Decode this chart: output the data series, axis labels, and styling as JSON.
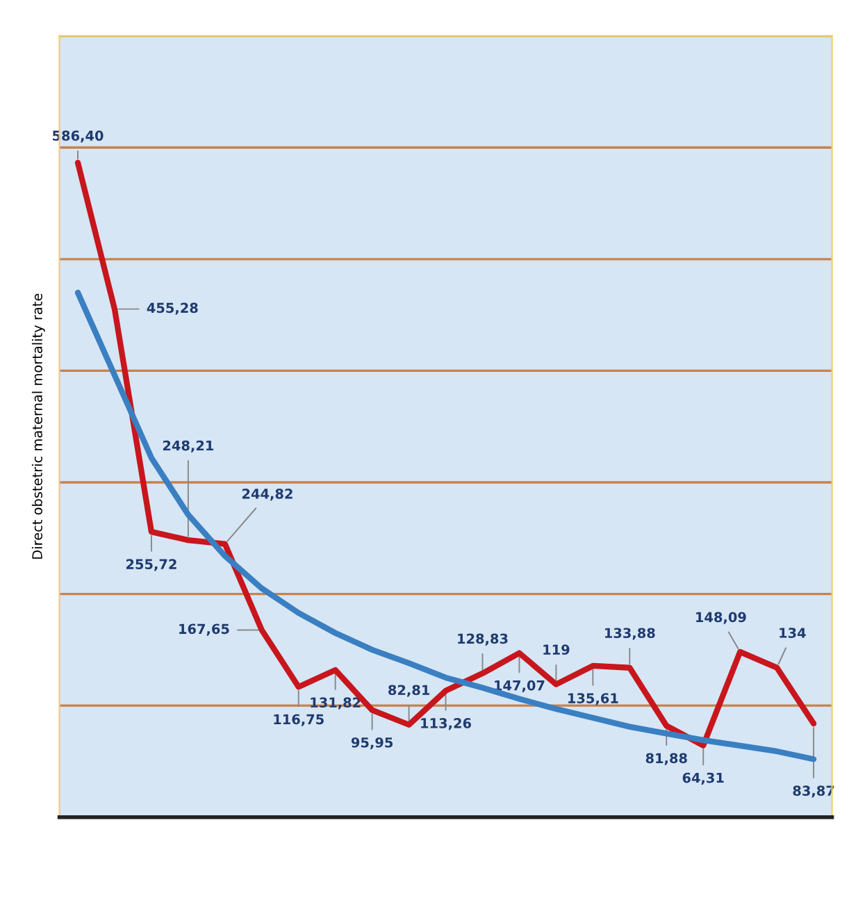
{
  "chart_data": {
    "type": "line",
    "ylabel": "Direct obstetric maternal mortality rate",
    "categories": [
      null,
      null,
      null,
      null,
      null,
      null,
      null,
      null,
      null,
      null,
      null,
      null,
      null,
      null,
      null,
      null,
      null,
      null,
      null,
      null,
      null
    ],
    "series": [
      {
        "color": "#c8161d",
        "values": [
          586.4,
          455.28,
          255.72,
          248.21,
          244.82,
          167.65,
          116.75,
          131.82,
          95.95,
          82.81,
          113.26,
          128.83,
          147.07,
          119,
          135.61,
          133.88,
          81.88,
          64.31,
          148.09,
          134,
          83.87
        ],
        "value_labels": [
          "586,40",
          "455,28",
          "255,72",
          "248,21",
          "244,82",
          "167,65",
          "116,75",
          "131,82",
          "95,95",
          "82,81",
          "113,26",
          "128,83",
          "147,07",
          "119",
          "135,61",
          "133,88",
          "81,88",
          "64,31",
          "148,09",
          "134",
          "83,87"
        ]
      },
      {
        "color": "#3a7fc1",
        "values": [
          470,
          396,
          322,
          271,
          234,
          205,
          183,
          165,
          150,
          138,
          125,
          116,
          106,
          97,
          89,
          81,
          75,
          69,
          64,
          59,
          52
        ]
      }
    ],
    "ylim": [
      0,
      700
    ],
    "yticks": [
      {
        "value": 0,
        "label": null
      },
      {
        "value": 100,
        "label": null
      },
      {
        "value": 200,
        "label": null
      },
      {
        "value": 300,
        "label": null
      },
      {
        "value": 400,
        "label": null
      },
      {
        "value": 500,
        "label": null
      },
      {
        "value": 600,
        "label": null
      },
      {
        "value": 700,
        "label": null
      }
    ],
    "grid": "y",
    "legend": false
  }
}
